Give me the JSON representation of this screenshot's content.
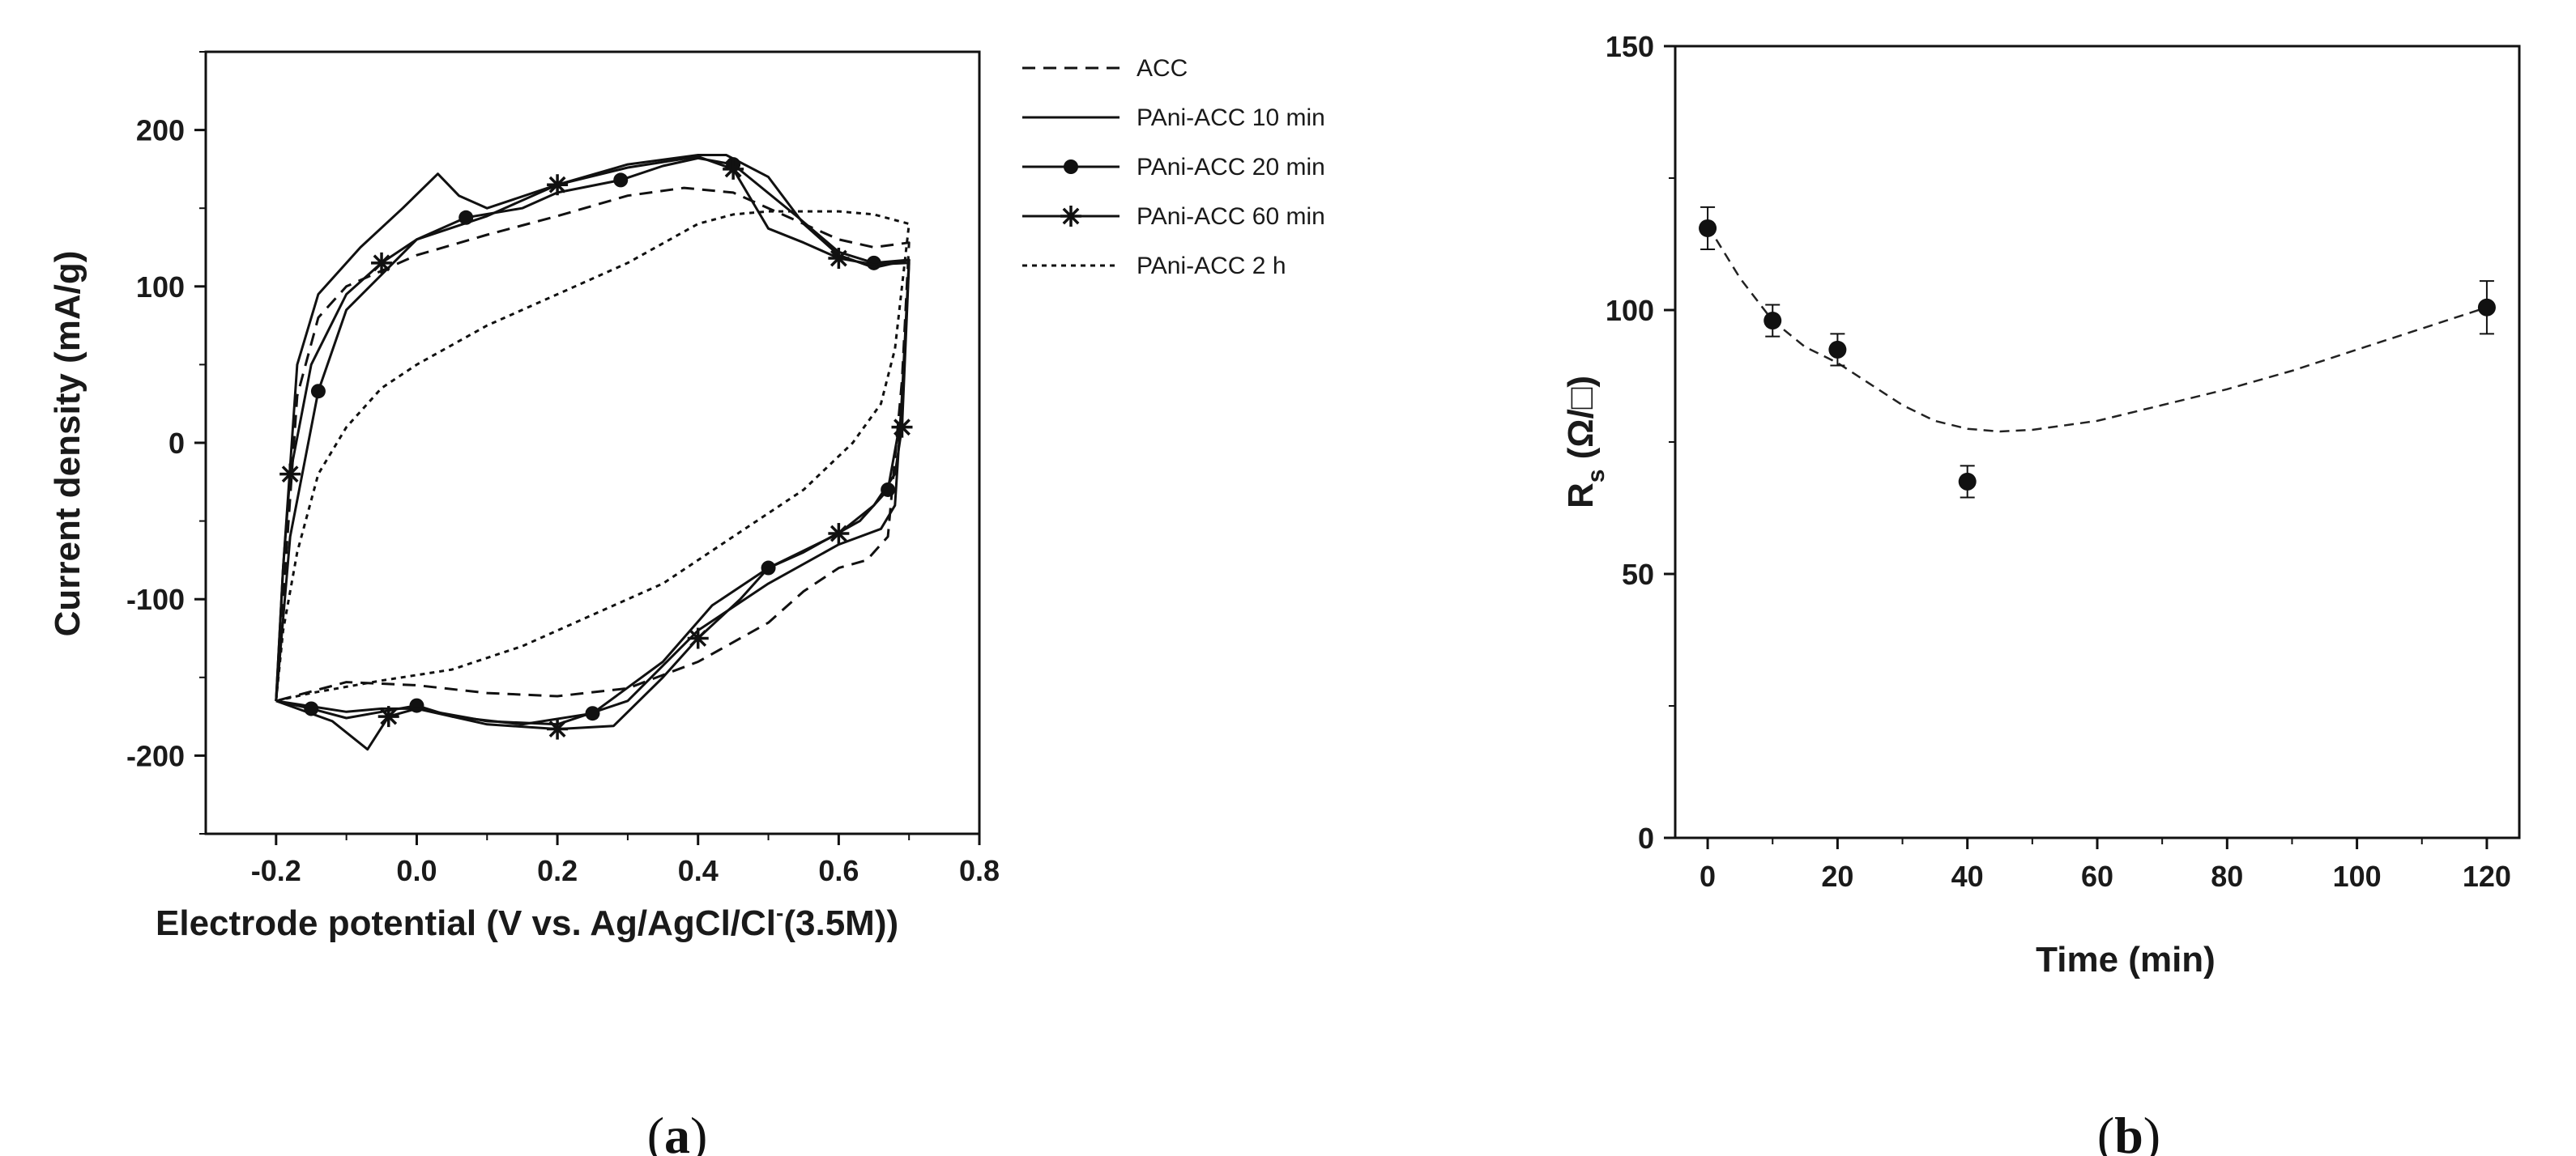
{
  "chart_data": [
    {
      "type": "line",
      "panel_label": "a",
      "title": "",
      "xlabel": "Electrode potential (V vs. Ag/AgCl/Cl",
      "xlabel_sup": "-",
      "xlabel_tail": "(3.5M))",
      "ylabel": "Current density (mA/g)",
      "xlim": [
        -0.3,
        0.8
      ],
      "ylim": [
        -250,
        250
      ],
      "xticks": [
        -0.2,
        0.0,
        0.2,
        0.4,
        0.6,
        0.8
      ],
      "xtick_labels": [
        "-0.2",
        "0.0",
        "0.2",
        "0.4",
        "0.6",
        "0.8"
      ],
      "yticks": [
        -200,
        -100,
        0,
        100,
        200
      ],
      "ytick_labels": [
        "-200",
        "-100",
        "0",
        "100",
        "200"
      ],
      "legend_position": "outside-right",
      "series": [
        {
          "name": "ACC",
          "style": "dashed",
          "marker": "none",
          "anodic": [
            [
              -0.2,
              -165
            ],
            [
              -0.19,
              -100
            ],
            [
              -0.17,
              30
            ],
            [
              -0.14,
              80
            ],
            [
              -0.1,
              100
            ],
            [
              0.0,
              120
            ],
            [
              0.1,
              133
            ],
            [
              0.2,
              145
            ],
            [
              0.3,
              158
            ],
            [
              0.38,
              163
            ],
            [
              0.45,
              160
            ],
            [
              0.5,
              150
            ],
            [
              0.55,
              140
            ],
            [
              0.6,
              130
            ],
            [
              0.65,
              125
            ],
            [
              0.7,
              128
            ]
          ],
          "cathodic": [
            [
              0.7,
              128
            ],
            [
              0.69,
              40
            ],
            [
              0.67,
              -60
            ],
            [
              0.64,
              -75
            ],
            [
              0.6,
              -80
            ],
            [
              0.55,
              -95
            ],
            [
              0.5,
              -115
            ],
            [
              0.4,
              -140
            ],
            [
              0.3,
              -157
            ],
            [
              0.2,
              -162
            ],
            [
              0.1,
              -160
            ],
            [
              0.0,
              -155
            ],
            [
              -0.1,
              -153
            ],
            [
              -0.2,
              -165
            ]
          ]
        },
        {
          "name": "PAni-ACC 10 min",
          "style": "solid",
          "marker": "none",
          "anodic": [
            [
              -0.2,
              -165
            ],
            [
              -0.19,
              -80
            ],
            [
              -0.17,
              50
            ],
            [
              -0.14,
              95
            ],
            [
              -0.08,
              125
            ],
            [
              -0.02,
              150
            ],
            [
              0.03,
              172
            ],
            [
              0.06,
              158
            ],
            [
              0.1,
              150
            ],
            [
              0.2,
              165
            ],
            [
              0.3,
              178
            ],
            [
              0.4,
              184
            ],
            [
              0.44,
              184
            ],
            [
              0.5,
              170
            ],
            [
              0.55,
              140
            ],
            [
              0.6,
              120
            ],
            [
              0.65,
              112
            ],
            [
              0.7,
              117
            ]
          ],
          "cathodic": [
            [
              0.7,
              117
            ],
            [
              0.69,
              30
            ],
            [
              0.68,
              -40
            ],
            [
              0.66,
              -55
            ],
            [
              0.6,
              -65
            ],
            [
              0.5,
              -90
            ],
            [
              0.4,
              -120
            ],
            [
              0.3,
              -165
            ],
            [
              0.2,
              -180
            ],
            [
              0.1,
              -178
            ],
            [
              0.0,
              -170
            ],
            [
              -0.05,
              -170
            ],
            [
              -0.1,
              -172
            ],
            [
              -0.2,
              -165
            ]
          ]
        },
        {
          "name": "PAni-ACC 20 min",
          "style": "solid",
          "marker": "circle",
          "anodic": [
            [
              -0.2,
              -165
            ],
            [
              -0.18,
              -60
            ],
            [
              -0.14,
              33
            ],
            [
              -0.1,
              85
            ],
            [
              0.0,
              130
            ],
            [
              0.07,
              144
            ],
            [
              0.15,
              150
            ],
            [
              0.2,
              160
            ],
            [
              0.29,
              168
            ],
            [
              0.35,
              177
            ],
            [
              0.4,
              182
            ],
            [
              0.45,
              178
            ],
            [
              0.54,
              145
            ],
            [
              0.6,
              122
            ],
            [
              0.65,
              115
            ],
            [
              0.7,
              117
            ]
          ],
          "cathodic": [
            [
              0.7,
              117
            ],
            [
              0.69,
              20
            ],
            [
              0.67,
              -30
            ],
            [
              0.63,
              -50
            ],
            [
              0.55,
              -70
            ],
            [
              0.5,
              -80
            ],
            [
              0.42,
              -104
            ],
            [
              0.35,
              -140
            ],
            [
              0.25,
              -173
            ],
            [
              0.15,
              -180
            ],
            [
              0.05,
              -175
            ],
            [
              0.0,
              -168
            ],
            [
              -0.05,
              -172
            ],
            [
              -0.1,
              -176
            ],
            [
              -0.15,
              -170
            ],
            [
              -0.2,
              -165
            ]
          ]
        },
        {
          "name": "PAni-ACC 60 min",
          "style": "solid",
          "marker": "star",
          "anodic": [
            [
              -0.2,
              -165
            ],
            [
              -0.19,
              -80
            ],
            [
              -0.18,
              -20
            ],
            [
              -0.15,
              50
            ],
            [
              -0.1,
              95
            ],
            [
              -0.05,
              115
            ],
            [
              0.0,
              130
            ],
            [
              0.1,
              145
            ],
            [
              0.2,
              165
            ],
            [
              0.3,
              176
            ],
            [
              0.4,
              183
            ],
            [
              0.45,
              175
            ],
            [
              0.5,
              137
            ],
            [
              0.55,
              128
            ],
            [
              0.6,
              118
            ],
            [
              0.65,
              114
            ],
            [
              0.7,
              115
            ]
          ],
          "cathodic": [
            [
              0.7,
              115
            ],
            [
              0.69,
              10
            ],
            [
              0.68,
              -20
            ],
            [
              0.65,
              -40
            ],
            [
              0.6,
              -58
            ],
            [
              0.5,
              -80
            ],
            [
              0.46,
              -100
            ],
            [
              0.4,
              -125
            ],
            [
              0.35,
              -150
            ],
            [
              0.28,
              -181
            ],
            [
              0.2,
              -183
            ],
            [
              0.1,
              -180
            ],
            [
              0.0,
              -170
            ],
            [
              -0.04,
              -175
            ],
            [
              -0.07,
              -196
            ],
            [
              -0.12,
              -178
            ],
            [
              -0.2,
              -165
            ]
          ]
        },
        {
          "name": "PAni-ACC 2 h",
          "style": "dotted",
          "marker": "none",
          "anodic": [
            [
              -0.2,
              -165
            ],
            [
              -0.19,
              -120
            ],
            [
              -0.17,
              -70
            ],
            [
              -0.14,
              -20
            ],
            [
              -0.1,
              10
            ],
            [
              -0.05,
              35
            ],
            [
              0.0,
              50
            ],
            [
              0.1,
              75
            ],
            [
              0.2,
              95
            ],
            [
              0.3,
              115
            ],
            [
              0.4,
              140
            ],
            [
              0.45,
              146
            ],
            [
              0.5,
              148
            ],
            [
              0.6,
              148
            ],
            [
              0.65,
              146
            ],
            [
              0.7,
              140
            ]
          ],
          "cathodic": [
            [
              0.7,
              140
            ],
            [
              0.68,
              60
            ],
            [
              0.66,
              25
            ],
            [
              0.62,
              0
            ],
            [
              0.55,
              -30
            ],
            [
              0.45,
              -60
            ],
            [
              0.35,
              -90
            ],
            [
              0.25,
              -110
            ],
            [
              0.15,
              -130
            ],
            [
              0.05,
              -145
            ],
            [
              -0.05,
              -152
            ],
            [
              -0.15,
              -160
            ],
            [
              -0.2,
              -165
            ]
          ]
        }
      ]
    },
    {
      "type": "scatter",
      "panel_label": "b",
      "title": "",
      "xlabel": "Time (min)",
      "ylabel": "R",
      "ylabel_sub": "s",
      "ylabel_unit": "(Ω/□)",
      "xlim": [
        -5,
        125
      ],
      "ylim": [
        0,
        150
      ],
      "xticks": [
        0,
        20,
        40,
        60,
        80,
        100,
        120
      ],
      "xtick_labels": [
        "0",
        "20",
        "40",
        "60",
        "80",
        "100",
        "120"
      ],
      "yticks": [
        0,
        50,
        100,
        150
      ],
      "ytick_labels": [
        "0",
        "50",
        "100",
        "150"
      ],
      "points": [
        {
          "x": 0,
          "y": 115.5,
          "err": 4
        },
        {
          "x": 10,
          "y": 98,
          "err": 3
        },
        {
          "x": 20,
          "y": 92.5,
          "err": 3
        },
        {
          "x": 40,
          "y": 67.5,
          "err": 3
        },
        {
          "x": 120,
          "y": 100.5,
          "err": 5
        }
      ],
      "trend": {
        "style": "dashed",
        "points": [
          [
            0,
            116
          ],
          [
            5,
            106
          ],
          [
            10,
            98
          ],
          [
            15,
            93
          ],
          [
            20,
            90
          ],
          [
            25,
            86
          ],
          [
            30,
            82
          ],
          [
            35,
            79
          ],
          [
            40,
            77.5
          ],
          [
            45,
            77
          ],
          [
            50,
            77.3
          ],
          [
            60,
            79
          ],
          [
            70,
            82
          ],
          [
            80,
            85
          ],
          [
            90,
            88.5
          ],
          [
            100,
            92.5
          ],
          [
            110,
            96.5
          ],
          [
            120,
            100.5
          ]
        ]
      }
    }
  ]
}
